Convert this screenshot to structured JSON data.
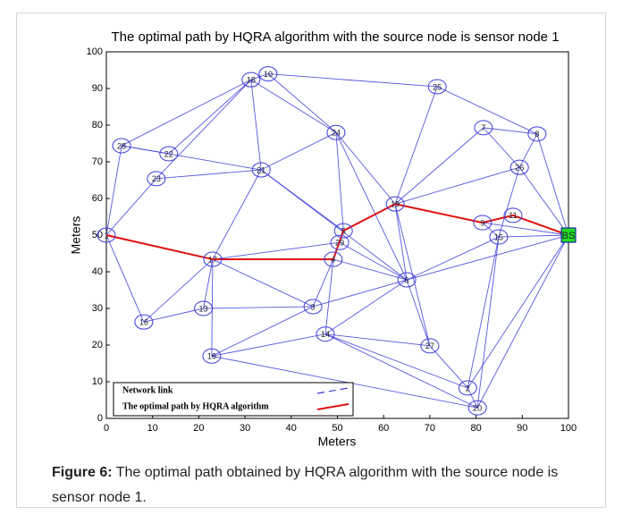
{
  "chart_data": {
    "type": "network",
    "title": "The optimal path by HQRA algorithm with the source node is sensor node 1",
    "x_label": "Meters",
    "y_label": "Meters",
    "xlim": [
      0,
      100
    ],
    "ylim": [
      0,
      100
    ],
    "xticks": [
      0,
      10,
      20,
      30,
      40,
      50,
      60,
      70,
      80,
      90,
      100
    ],
    "yticks": [
      0,
      10,
      20,
      30,
      40,
      50,
      60,
      70,
      80,
      90,
      100
    ],
    "nodes": [
      {
        "label": "1",
        "x": 0,
        "y": 50
      },
      {
        "label": "18",
        "x": 31.3,
        "y": 92.4
      },
      {
        "label": "10",
        "x": 35,
        "y": 94
      },
      {
        "label": "25",
        "x": 71.6,
        "y": 90.5
      },
      {
        "label": "7",
        "x": 81.6,
        "y": 79.3
      },
      {
        "label": "8",
        "x": 93.2,
        "y": 77.6
      },
      {
        "label": "24",
        "x": 49.7,
        "y": 78
      },
      {
        "label": "28",
        "x": 3.3,
        "y": 74.4
      },
      {
        "label": "22",
        "x": 13.5,
        "y": 72.2
      },
      {
        "label": "23",
        "x": 10.8,
        "y": 65.4
      },
      {
        "label": "21",
        "x": 33.5,
        "y": 67.8
      },
      {
        "label": "26",
        "x": 89.4,
        "y": 68.5
      },
      {
        "label": "19",
        "x": 62.5,
        "y": 58.5
      },
      {
        "label": "11",
        "x": 88,
        "y": 55.4
      },
      {
        "label": "9",
        "x": 81.4,
        "y": 53.4
      },
      {
        "label": "5",
        "x": 51.3,
        "y": 51.2
      },
      {
        "label": "29",
        "x": 50.5,
        "y": 48
      },
      {
        "label": "15",
        "x": 84.9,
        "y": 49.5
      },
      {
        "label": "BS",
        "x": 100,
        "y": 50
      },
      {
        "label": "17",
        "x": 23,
        "y": 43.4
      },
      {
        "label": "4",
        "x": 49.1,
        "y": 43.4
      },
      {
        "label": "6",
        "x": 65,
        "y": 37.8
      },
      {
        "label": "13",
        "x": 21,
        "y": 30
      },
      {
        "label": "3",
        "x": 44.7,
        "y": 30.5
      },
      {
        "label": "16",
        "x": 8.1,
        "y": 26.3
      },
      {
        "label": "14",
        "x": 47.4,
        "y": 23
      },
      {
        "label": "27",
        "x": 70,
        "y": 19.8
      },
      {
        "label": "2",
        "x": 78.2,
        "y": 8.3
      },
      {
        "label": "20",
        "x": 80.3,
        "y": 2.9
      },
      {
        "label": "16",
        "x": 22.8,
        "y": 17
      }
    ],
    "edges": [
      [
        0,
        7
      ],
      [
        0,
        9
      ],
      [
        0,
        19
      ],
      [
        0,
        24
      ],
      [
        7,
        8
      ],
      [
        7,
        10
      ],
      [
        7,
        1
      ],
      [
        8,
        1
      ],
      [
        9,
        10
      ],
      [
        9,
        1
      ],
      [
        1,
        2
      ],
      [
        1,
        10
      ],
      [
        1,
        6
      ],
      [
        2,
        3
      ],
      [
        2,
        6
      ],
      [
        3,
        12
      ],
      [
        3,
        5
      ],
      [
        6,
        10
      ],
      [
        6,
        15
      ],
      [
        6,
        12
      ],
      [
        6,
        21
      ],
      [
        10,
        19
      ],
      [
        10,
        15
      ],
      [
        10,
        21
      ],
      [
        4,
        5
      ],
      [
        4,
        12
      ],
      [
        4,
        11
      ],
      [
        5,
        11
      ],
      [
        5,
        18
      ],
      [
        11,
        12
      ],
      [
        11,
        17
      ],
      [
        11,
        18
      ],
      [
        12,
        21
      ],
      [
        12,
        15
      ],
      [
        12,
        26
      ],
      [
        14,
        17
      ],
      [
        14,
        18
      ],
      [
        17,
        18
      ],
      [
        17,
        21
      ],
      [
        17,
        28
      ],
      [
        17,
        27
      ],
      [
        18,
        27
      ],
      [
        18,
        28
      ],
      [
        18,
        21
      ],
      [
        19,
        22
      ],
      [
        19,
        20
      ],
      [
        19,
        16
      ],
      [
        19,
        24
      ],
      [
        19,
        23
      ],
      [
        19,
        29
      ],
      [
        16,
        15
      ],
      [
        16,
        21
      ],
      [
        20,
        21
      ],
      [
        20,
        23
      ],
      [
        20,
        25
      ],
      [
        21,
        23
      ],
      [
        21,
        25
      ],
      [
        21,
        26
      ],
      [
        22,
        24
      ],
      [
        22,
        23
      ],
      [
        23,
        29
      ],
      [
        29,
        25
      ],
      [
        29,
        28
      ],
      [
        25,
        26
      ],
      [
        25,
        27
      ],
      [
        25,
        28
      ],
      [
        26,
        27
      ],
      [
        27,
        28
      ]
    ],
    "path": [
      0,
      19,
      20,
      15,
      12,
      14,
      13,
      18
    ],
    "link_color": "#3a3ad8",
    "path_color": "#e01010",
    "bs_color": "#22dd22",
    "legend": [
      "Network link",
      "The optimal path by HQRA algorithm"
    ],
    "caption_label": "Figure 6:",
    "caption": "The optimal path obtained by HQRA algorithm with the source node is sensor node 1."
  }
}
